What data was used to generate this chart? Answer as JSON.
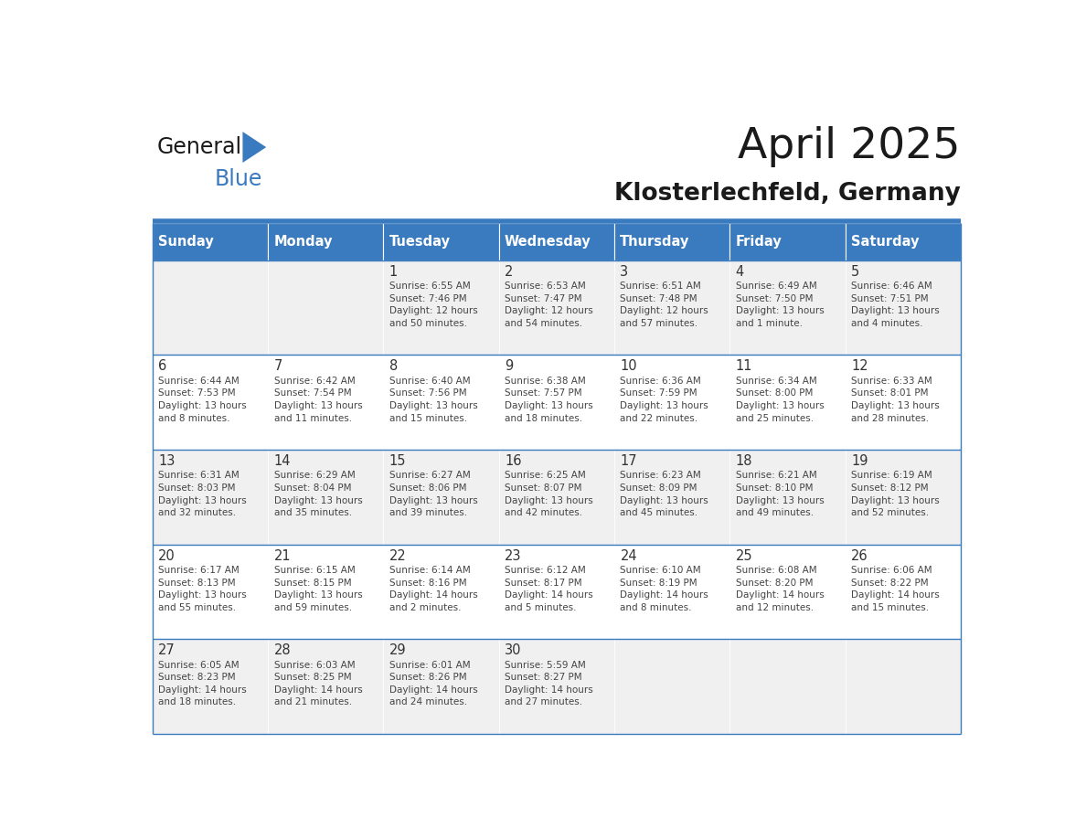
{
  "title": "April 2025",
  "subtitle": "Klosterlechfeld, Germany",
  "header_color": "#3a7abf",
  "header_text_color": "#ffffff",
  "day_names": [
    "Sunday",
    "Monday",
    "Tuesday",
    "Wednesday",
    "Thursday",
    "Friday",
    "Saturday"
  ],
  "alt_row_color": "#f0f0f0",
  "white_color": "#ffffff",
  "border_color": "#3a7abf",
  "text_color": "#444444",
  "num_color": "#333333",
  "calendar": [
    [
      {
        "day": "",
        "info": ""
      },
      {
        "day": "",
        "info": ""
      },
      {
        "day": "1",
        "info": "Sunrise: 6:55 AM\nSunset: 7:46 PM\nDaylight: 12 hours\nand 50 minutes."
      },
      {
        "day": "2",
        "info": "Sunrise: 6:53 AM\nSunset: 7:47 PM\nDaylight: 12 hours\nand 54 minutes."
      },
      {
        "day": "3",
        "info": "Sunrise: 6:51 AM\nSunset: 7:48 PM\nDaylight: 12 hours\nand 57 minutes."
      },
      {
        "day": "4",
        "info": "Sunrise: 6:49 AM\nSunset: 7:50 PM\nDaylight: 13 hours\nand 1 minute."
      },
      {
        "day": "5",
        "info": "Sunrise: 6:46 AM\nSunset: 7:51 PM\nDaylight: 13 hours\nand 4 minutes."
      }
    ],
    [
      {
        "day": "6",
        "info": "Sunrise: 6:44 AM\nSunset: 7:53 PM\nDaylight: 13 hours\nand 8 minutes."
      },
      {
        "day": "7",
        "info": "Sunrise: 6:42 AM\nSunset: 7:54 PM\nDaylight: 13 hours\nand 11 minutes."
      },
      {
        "day": "8",
        "info": "Sunrise: 6:40 AM\nSunset: 7:56 PM\nDaylight: 13 hours\nand 15 minutes."
      },
      {
        "day": "9",
        "info": "Sunrise: 6:38 AM\nSunset: 7:57 PM\nDaylight: 13 hours\nand 18 minutes."
      },
      {
        "day": "10",
        "info": "Sunrise: 6:36 AM\nSunset: 7:59 PM\nDaylight: 13 hours\nand 22 minutes."
      },
      {
        "day": "11",
        "info": "Sunrise: 6:34 AM\nSunset: 8:00 PM\nDaylight: 13 hours\nand 25 minutes."
      },
      {
        "day": "12",
        "info": "Sunrise: 6:33 AM\nSunset: 8:01 PM\nDaylight: 13 hours\nand 28 minutes."
      }
    ],
    [
      {
        "day": "13",
        "info": "Sunrise: 6:31 AM\nSunset: 8:03 PM\nDaylight: 13 hours\nand 32 minutes."
      },
      {
        "day": "14",
        "info": "Sunrise: 6:29 AM\nSunset: 8:04 PM\nDaylight: 13 hours\nand 35 minutes."
      },
      {
        "day": "15",
        "info": "Sunrise: 6:27 AM\nSunset: 8:06 PM\nDaylight: 13 hours\nand 39 minutes."
      },
      {
        "day": "16",
        "info": "Sunrise: 6:25 AM\nSunset: 8:07 PM\nDaylight: 13 hours\nand 42 minutes."
      },
      {
        "day": "17",
        "info": "Sunrise: 6:23 AM\nSunset: 8:09 PM\nDaylight: 13 hours\nand 45 minutes."
      },
      {
        "day": "18",
        "info": "Sunrise: 6:21 AM\nSunset: 8:10 PM\nDaylight: 13 hours\nand 49 minutes."
      },
      {
        "day": "19",
        "info": "Sunrise: 6:19 AM\nSunset: 8:12 PM\nDaylight: 13 hours\nand 52 minutes."
      }
    ],
    [
      {
        "day": "20",
        "info": "Sunrise: 6:17 AM\nSunset: 8:13 PM\nDaylight: 13 hours\nand 55 minutes."
      },
      {
        "day": "21",
        "info": "Sunrise: 6:15 AM\nSunset: 8:15 PM\nDaylight: 13 hours\nand 59 minutes."
      },
      {
        "day": "22",
        "info": "Sunrise: 6:14 AM\nSunset: 8:16 PM\nDaylight: 14 hours\nand 2 minutes."
      },
      {
        "day": "23",
        "info": "Sunrise: 6:12 AM\nSunset: 8:17 PM\nDaylight: 14 hours\nand 5 minutes."
      },
      {
        "day": "24",
        "info": "Sunrise: 6:10 AM\nSunset: 8:19 PM\nDaylight: 14 hours\nand 8 minutes."
      },
      {
        "day": "25",
        "info": "Sunrise: 6:08 AM\nSunset: 8:20 PM\nDaylight: 14 hours\nand 12 minutes."
      },
      {
        "day": "26",
        "info": "Sunrise: 6:06 AM\nSunset: 8:22 PM\nDaylight: 14 hours\nand 15 minutes."
      }
    ],
    [
      {
        "day": "27",
        "info": "Sunrise: 6:05 AM\nSunset: 8:23 PM\nDaylight: 14 hours\nand 18 minutes."
      },
      {
        "day": "28",
        "info": "Sunrise: 6:03 AM\nSunset: 8:25 PM\nDaylight: 14 hours\nand 21 minutes."
      },
      {
        "day": "29",
        "info": "Sunrise: 6:01 AM\nSunset: 8:26 PM\nDaylight: 14 hours\nand 24 minutes."
      },
      {
        "day": "30",
        "info": "Sunrise: 5:59 AM\nSunset: 8:27 PM\nDaylight: 14 hours\nand 27 minutes."
      },
      {
        "day": "",
        "info": ""
      },
      {
        "day": "",
        "info": ""
      },
      {
        "day": "",
        "info": ""
      }
    ]
  ]
}
